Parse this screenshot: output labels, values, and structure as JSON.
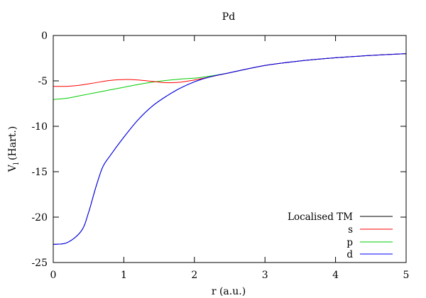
{
  "chart_data": {
    "type": "line",
    "title": "Pd",
    "xlabel": "r (a.u.)",
    "ylabel_main": "V",
    "ylabel_sub": "l",
    "ylabel_unit": "(Hart.)",
    "xlim": [
      0,
      5
    ],
    "ylim": [
      -25,
      0
    ],
    "xticks": [
      0,
      1,
      2,
      3,
      4,
      5
    ],
    "yticks": [
      0,
      -5,
      -10,
      -15,
      -20,
      -25
    ],
    "grid": false,
    "legend_position": "bottom-right",
    "series": [
      {
        "name": "Localised TM",
        "color": "#000000",
        "x": [
          0.0,
          0.2,
          0.4,
          0.5,
          0.6,
          0.7,
          0.8,
          1.0,
          1.2,
          1.4,
          1.6,
          1.8,
          2.0,
          2.2,
          2.5,
          3.0,
          3.5,
          4.0,
          4.5,
          5.0
        ],
        "y": [
          -23.0,
          -22.8,
          -21.5,
          -19.5,
          -16.8,
          -14.5,
          -13.3,
          -11.2,
          -9.3,
          -7.8,
          -6.7,
          -5.8,
          -5.1,
          -4.6,
          -4.1,
          -3.3,
          -2.8,
          -2.45,
          -2.2,
          -2.0
        ]
      },
      {
        "name": "s",
        "color": "#ff0000",
        "x": [
          0.0,
          0.2,
          0.4,
          0.6,
          0.8,
          1.0,
          1.2,
          1.4,
          1.6,
          1.8,
          2.0,
          2.2,
          2.5,
          3.0,
          3.5,
          4.0,
          4.5,
          5.0
        ],
        "y": [
          -5.6,
          -5.6,
          -5.45,
          -5.2,
          -4.95,
          -4.85,
          -4.9,
          -5.05,
          -5.2,
          -5.15,
          -4.9,
          -4.6,
          -4.1,
          -3.3,
          -2.8,
          -2.45,
          -2.2,
          -2.0
        ]
      },
      {
        "name": "p",
        "color": "#00cc00",
        "x": [
          0.0,
          0.2,
          0.4,
          0.6,
          0.8,
          1.0,
          1.2,
          1.4,
          1.6,
          1.8,
          2.0,
          2.2,
          2.5,
          3.0,
          3.5,
          4.0,
          4.5,
          5.0
        ],
        "y": [
          -7.05,
          -6.9,
          -6.6,
          -6.3,
          -6.0,
          -5.7,
          -5.4,
          -5.15,
          -4.95,
          -4.8,
          -4.7,
          -4.5,
          -4.1,
          -3.3,
          -2.8,
          -2.45,
          -2.2,
          -2.0
        ]
      },
      {
        "name": "d",
        "color": "#0000ff",
        "x": [
          0.0,
          0.2,
          0.4,
          0.5,
          0.6,
          0.7,
          0.8,
          1.0,
          1.2,
          1.4,
          1.6,
          1.8,
          2.0,
          2.2,
          2.5,
          3.0,
          3.5,
          4.0,
          4.5,
          5.0
        ],
        "y": [
          -23.0,
          -22.8,
          -21.5,
          -19.5,
          -16.8,
          -14.5,
          -13.3,
          -11.2,
          -9.3,
          -7.8,
          -6.7,
          -5.8,
          -5.1,
          -4.6,
          -4.1,
          -3.3,
          -2.8,
          -2.45,
          -2.2,
          -2.0
        ]
      }
    ]
  }
}
